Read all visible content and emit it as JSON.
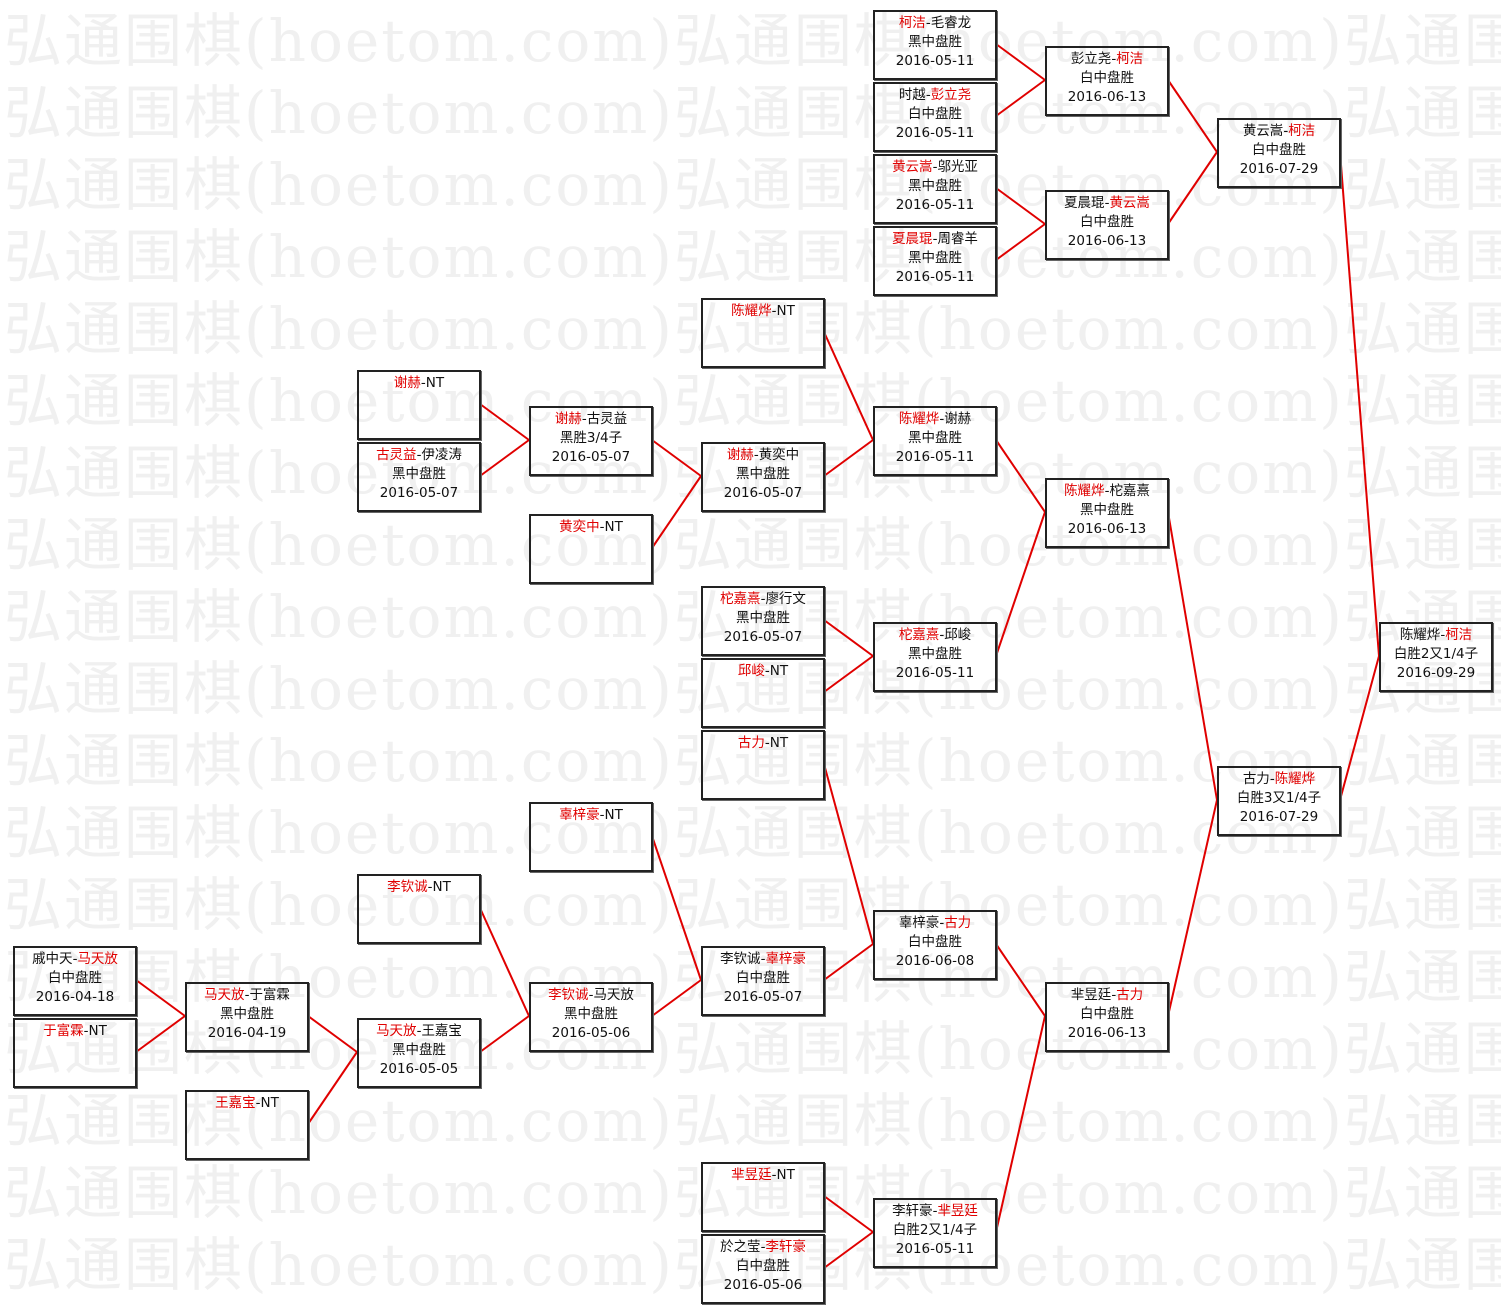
{
  "watermark": "弘通围棋(hoetom.com)弘通围棋(hoetom.com)弘通围棋",
  "colors": {
    "winner": "#e00000",
    "line": "#e00000",
    "border": "#222222"
  },
  "separator": "-",
  "matches": [
    {
      "id": "A1",
      "players": [
        "柯洁",
        "毛睿龙"
      ],
      "winner": 0,
      "result": "黑中盘胜",
      "date": "2016-05-11"
    },
    {
      "id": "A2",
      "players": [
        "时越",
        "彭立尧"
      ],
      "winner": 1,
      "result": "白中盘胜",
      "date": "2016-05-11"
    },
    {
      "id": "A3",
      "players": [
        "黄云嵩",
        "邬光亚"
      ],
      "winner": 0,
      "result": "黑中盘胜",
      "date": "2016-05-11"
    },
    {
      "id": "A4",
      "players": [
        "夏晨琨",
        "周睿羊"
      ],
      "winner": 0,
      "result": "黑中盘胜",
      "date": "2016-05-11"
    },
    {
      "id": "B1",
      "players": [
        "彭立尧",
        "柯洁"
      ],
      "winner": 1,
      "result": "白中盘胜",
      "date": "2016-06-13",
      "from": [
        "A1",
        "A2"
      ]
    },
    {
      "id": "B2",
      "players": [
        "夏晨琨",
        "黄云嵩"
      ],
      "winner": 1,
      "result": "白中盘胜",
      "date": "2016-06-13",
      "from": [
        "A3",
        "A4"
      ]
    },
    {
      "id": "C1",
      "players": [
        "黄云嵩",
        "柯洁"
      ],
      "winner": 1,
      "result": "白中盘胜",
      "date": "2016-07-29",
      "from": [
        "B1",
        "B2"
      ]
    },
    {
      "id": "D",
      "players": [
        "陈耀烨",
        "柯洁"
      ],
      "winner": 1,
      "result": "白胜2又1/4子",
      "date": "2016-09-29",
      "from": [
        "C1",
        "C2"
      ]
    },
    {
      "id": "C2",
      "players": [
        "古力",
        "陈耀烨"
      ],
      "winner": 1,
      "result": "白胜3又1/4子",
      "date": "2016-07-29",
      "from": [
        "E1",
        "E2"
      ]
    },
    {
      "id": "E1",
      "players": [
        "陈耀烨",
        "柁嘉熹"
      ],
      "winner": 0,
      "result": "黑中盘胜",
      "date": "2016-06-13",
      "from": [
        "F1",
        "F2"
      ]
    },
    {
      "id": "F1",
      "players": [
        "陈耀烨",
        "谢赫"
      ],
      "winner": 0,
      "result": "黑中盘胜",
      "date": "2016-05-11",
      "from": [
        "G1",
        "G2"
      ]
    },
    {
      "id": "G1",
      "players": [
        "陈耀烨",
        "NT"
      ],
      "winner": 0,
      "result": "",
      "date": ""
    },
    {
      "id": "G2",
      "players": [
        "谢赫",
        "黄奕中"
      ],
      "winner": 0,
      "result": "黑中盘胜",
      "date": "2016-05-07",
      "from": [
        "H1",
        "H2"
      ]
    },
    {
      "id": "H1",
      "players": [
        "谢赫",
        "古灵益"
      ],
      "winner": 0,
      "result": "黑胜3/4子",
      "date": "2016-05-07",
      "from": [
        "I1",
        "I2"
      ]
    },
    {
      "id": "I1",
      "players": [
        "谢赫",
        "NT"
      ],
      "winner": 0,
      "result": "",
      "date": ""
    },
    {
      "id": "I2",
      "players": [
        "古灵益",
        "伊凌涛"
      ],
      "winner": 0,
      "result": "黑中盘胜",
      "date": "2016-05-07"
    },
    {
      "id": "H2",
      "players": [
        "黄奕中",
        "NT"
      ],
      "winner": 0,
      "result": "",
      "date": ""
    },
    {
      "id": "F2",
      "players": [
        "柁嘉熹",
        "邱峻"
      ],
      "winner": 0,
      "result": "黑中盘胜",
      "date": "2016-05-11",
      "from": [
        "G3",
        "G4"
      ]
    },
    {
      "id": "G3",
      "players": [
        "柁嘉熹",
        "廖行文"
      ],
      "winner": 0,
      "result": "黑中盘胜",
      "date": "2016-05-07"
    },
    {
      "id": "G4",
      "players": [
        "邱峻",
        "NT"
      ],
      "winner": 0,
      "result": "",
      "date": ""
    },
    {
      "id": "E2",
      "players": [
        "芈昱廷",
        "古力"
      ],
      "winner": 1,
      "result": "白中盘胜",
      "date": "2016-06-13",
      "from": [
        "F3",
        "F4"
      ]
    },
    {
      "id": "F3",
      "players": [
        "辜梓豪",
        "古力"
      ],
      "winner": 1,
      "result": "白中盘胜",
      "date": "2016-06-08",
      "from": [
        "G5",
        "G6"
      ]
    },
    {
      "id": "G5",
      "players": [
        "古力",
        "NT"
      ],
      "winner": 0,
      "result": "",
      "date": ""
    },
    {
      "id": "G6",
      "players": [
        "李钦诚",
        "辜梓豪"
      ],
      "winner": 1,
      "result": "白中盘胜",
      "date": "2016-05-07",
      "from": [
        "H3",
        "H4"
      ]
    },
    {
      "id": "H3",
      "players": [
        "辜梓豪",
        "NT"
      ],
      "winner": 0,
      "result": "",
      "date": ""
    },
    {
      "id": "H4",
      "players": [
        "李钦诚",
        "马天放"
      ],
      "winner": 0,
      "result": "黑中盘胜",
      "date": "2016-05-06",
      "from": [
        "I3",
        "I4"
      ]
    },
    {
      "id": "I3",
      "players": [
        "李钦诚",
        "NT"
      ],
      "winner": 0,
      "result": "",
      "date": ""
    },
    {
      "id": "I4",
      "players": [
        "马天放",
        "王嘉宝"
      ],
      "winner": 0,
      "result": "黑中盘胜",
      "date": "2016-05-05",
      "from": [
        "J1",
        "J2"
      ]
    },
    {
      "id": "J1",
      "players": [
        "马天放",
        "于富霖"
      ],
      "winner": 0,
      "result": "黑中盘胜",
      "date": "2016-04-19",
      "from": [
        "K1",
        "K2"
      ]
    },
    {
      "id": "J2",
      "players": [
        "王嘉宝",
        "NT"
      ],
      "winner": 0,
      "result": "",
      "date": ""
    },
    {
      "id": "K1",
      "players": [
        "戚中天",
        "马天放"
      ],
      "winner": 1,
      "result": "白中盘胜",
      "date": "2016-04-18"
    },
    {
      "id": "K2",
      "players": [
        "于富霖",
        "NT"
      ],
      "winner": 0,
      "result": "",
      "date": ""
    },
    {
      "id": "F4",
      "players": [
        "李轩豪",
        "芈昱廷"
      ],
      "winner": 1,
      "result": "白胜2又1/4子",
      "date": "2016-05-11",
      "from": [
        "G7",
        "G8"
      ]
    },
    {
      "id": "G7",
      "players": [
        "芈昱廷",
        "NT"
      ],
      "winner": 0,
      "result": "",
      "date": ""
    },
    {
      "id": "G8",
      "players": [
        "於之莹",
        "李轩豪"
      ],
      "winner": 1,
      "result": "白中盘胜",
      "date": "2016-05-06"
    }
  ]
}
